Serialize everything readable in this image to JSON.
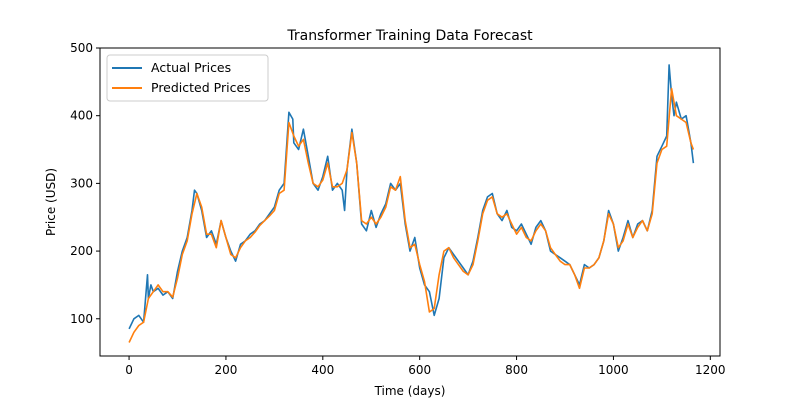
{
  "chart_data": {
    "type": "line",
    "title": "Transformer Training Data Forecast",
    "xlabel": "Time (days)",
    "ylabel": "Price (USD)",
    "xlim": [
      -60,
      1220
    ],
    "ylim": [
      45,
      500
    ],
    "xticks": [
      0,
      200,
      400,
      600,
      800,
      1000,
      1200
    ],
    "yticks": [
      100,
      200,
      300,
      400,
      500
    ],
    "grid": false,
    "legend_position": "top-left",
    "series": [
      {
        "name": "Actual Prices",
        "color": "#1f77b4",
        "x": [
          0,
          10,
          20,
          30,
          38,
          40,
          45,
          50,
          60,
          70,
          80,
          90,
          100,
          110,
          120,
          130,
          135,
          140,
          150,
          160,
          170,
          180,
          190,
          200,
          210,
          220,
          230,
          240,
          250,
          260,
          270,
          280,
          290,
          300,
          310,
          320,
          330,
          338,
          340,
          350,
          360,
          370,
          380,
          390,
          400,
          410,
          420,
          430,
          440,
          445,
          450,
          460,
          470,
          480,
          490,
          500,
          510,
          520,
          530,
          540,
          550,
          560,
          570,
          580,
          590,
          600,
          610,
          620,
          630,
          640,
          650,
          660,
          670,
          680,
          690,
          700,
          710,
          720,
          730,
          740,
          750,
          760,
          770,
          780,
          790,
          800,
          810,
          820,
          830,
          840,
          850,
          860,
          870,
          880,
          890,
          900,
          910,
          920,
          930,
          940,
          950,
          960,
          970,
          980,
          990,
          1000,
          1010,
          1020,
          1030,
          1040,
          1050,
          1060,
          1070,
          1080,
          1090,
          1100,
          1110,
          1115,
          1120,
          1125,
          1130,
          1140,
          1150,
          1160,
          1165
        ],
        "y": [
          85,
          100,
          105,
          95,
          165,
          130,
          150,
          140,
          145,
          135,
          140,
          130,
          170,
          200,
          220,
          260,
          290,
          285,
          260,
          220,
          230,
          210,
          245,
          220,
          200,
          185,
          210,
          215,
          225,
          230,
          240,
          245,
          255,
          265,
          290,
          300,
          405,
          395,
          360,
          350,
          380,
          340,
          300,
          290,
          310,
          340,
          290,
          300,
          290,
          260,
          320,
          380,
          330,
          240,
          230,
          260,
          235,
          255,
          270,
          300,
          290,
          300,
          240,
          200,
          220,
          175,
          150,
          140,
          105,
          130,
          190,
          205,
          195,
          185,
          175,
          165,
          185,
          220,
          260,
          280,
          285,
          255,
          245,
          260,
          235,
          230,
          240,
          225,
          210,
          235,
          245,
          230,
          200,
          195,
          190,
          185,
          180,
          165,
          150,
          180,
          175,
          180,
          190,
          215,
          260,
          240,
          200,
          220,
          245,
          220,
          240,
          245,
          230,
          260,
          340,
          355,
          370,
          475,
          430,
          400,
          420,
          395,
          400,
          360,
          330
        ]
      },
      {
        "name": "Predicted Prices",
        "color": "#ff7f0e",
        "x": [
          0,
          10,
          20,
          30,
          40,
          50,
          60,
          70,
          80,
          90,
          100,
          110,
          120,
          130,
          140,
          150,
          160,
          170,
          180,
          190,
          200,
          210,
          220,
          230,
          240,
          250,
          260,
          270,
          280,
          290,
          300,
          310,
          320,
          330,
          340,
          350,
          360,
          370,
          380,
          390,
          400,
          410,
          420,
          430,
          440,
          450,
          460,
          470,
          480,
          490,
          500,
          510,
          520,
          530,
          540,
          550,
          560,
          570,
          580,
          590,
          600,
          610,
          620,
          630,
          640,
          650,
          660,
          670,
          680,
          690,
          700,
          710,
          720,
          730,
          740,
          750,
          760,
          770,
          780,
          790,
          800,
          810,
          820,
          830,
          840,
          850,
          860,
          870,
          880,
          890,
          900,
          910,
          920,
          930,
          940,
          950,
          960,
          970,
          980,
          990,
          1000,
          1010,
          1020,
          1030,
          1040,
          1050,
          1060,
          1070,
          1080,
          1090,
          1100,
          1110,
          1120,
          1130,
          1140,
          1150,
          1160,
          1165
        ],
        "y": [
          65,
          80,
          90,
          95,
          130,
          140,
          150,
          140,
          140,
          132,
          160,
          195,
          215,
          255,
          285,
          265,
          225,
          225,
          205,
          245,
          220,
          195,
          190,
          205,
          215,
          220,
          228,
          238,
          245,
          252,
          260,
          285,
          290,
          390,
          370,
          355,
          365,
          330,
          300,
          295,
          305,
          330,
          295,
          295,
          300,
          320,
          375,
          330,
          245,
          240,
          250,
          240,
          250,
          265,
          295,
          290,
          310,
          245,
          205,
          210,
          180,
          155,
          110,
          115,
          165,
          200,
          205,
          190,
          180,
          170,
          165,
          180,
          215,
          255,
          275,
          280,
          255,
          250,
          255,
          240,
          225,
          235,
          220,
          215,
          230,
          240,
          230,
          205,
          195,
          185,
          180,
          180,
          165,
          145,
          175,
          175,
          180,
          190,
          215,
          255,
          240,
          205,
          215,
          240,
          220,
          235,
          245,
          230,
          255,
          330,
          350,
          355,
          440,
          400,
          395,
          390,
          360,
          350
        ]
      }
    ]
  }
}
